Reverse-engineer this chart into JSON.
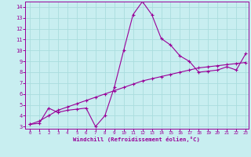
{
  "xlabel": "Windchill (Refroidissement éolien,°C)",
  "bg_color": "#c8eef0",
  "line_color": "#990099",
  "grid_color": "#aadddd",
  "xlim": [
    -0.5,
    23.3
  ],
  "ylim": [
    2.8,
    14.5
  ],
  "xticks": [
    0,
    1,
    2,
    3,
    4,
    5,
    6,
    7,
    8,
    9,
    10,
    11,
    12,
    13,
    14,
    15,
    16,
    17,
    18,
    19,
    20,
    21,
    22,
    23
  ],
  "yticks": [
    3,
    4,
    5,
    6,
    7,
    8,
    9,
    10,
    11,
    12,
    13,
    14
  ],
  "curve1_x": [
    0,
    1,
    2,
    3,
    4,
    5,
    6,
    7,
    8,
    9,
    10,
    11,
    12,
    13,
    14,
    15,
    16,
    17,
    18,
    19,
    20,
    21,
    22,
    23
  ],
  "curve1_y": [
    3.2,
    3.3,
    4.7,
    4.3,
    4.5,
    4.6,
    4.7,
    3.0,
    4.0,
    6.6,
    10.0,
    13.3,
    14.5,
    13.3,
    11.1,
    10.5,
    9.5,
    9.0,
    8.0,
    8.1,
    8.2,
    8.5,
    8.2,
    9.7
  ],
  "curve2_x": [
    0,
    1,
    2,
    3,
    4,
    5,
    6,
    7,
    8,
    9,
    10,
    11,
    12,
    13,
    14,
    15,
    16,
    17,
    18,
    19,
    20,
    21,
    22,
    23
  ],
  "curve2_y": [
    3.2,
    3.5,
    4.0,
    4.5,
    4.8,
    5.1,
    5.4,
    5.7,
    6.0,
    6.3,
    6.6,
    6.9,
    7.2,
    7.4,
    7.6,
    7.8,
    8.0,
    8.2,
    8.4,
    8.5,
    8.6,
    8.7,
    8.8,
    8.9
  ],
  "marker": "+",
  "markersize": 3,
  "linewidth": 0.8
}
